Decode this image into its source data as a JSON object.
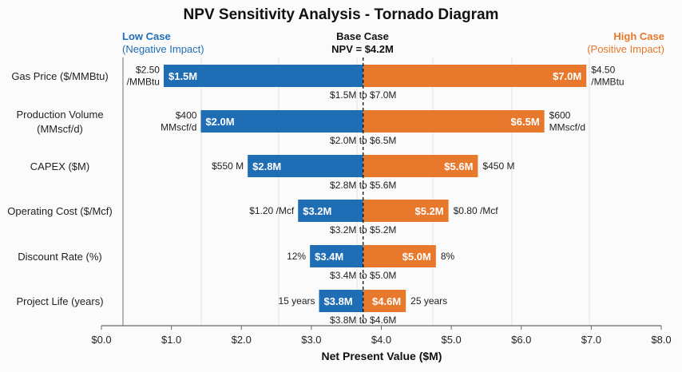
{
  "chart_data": {
    "type": "tornado",
    "title": "NPV Sensitivity Analysis - Tornado Diagram",
    "xlabel": "Net Present Value ($M)",
    "xlim": [
      0,
      8
    ],
    "x_ticks": [
      "$0.0",
      "$1.0",
      "$2.0",
      "$3.0",
      "$4.0",
      "$5.0",
      "$6.0",
      "$7.0",
      "$8.0"
    ],
    "grid": true,
    "header": {
      "low_title": "Low Case",
      "low_subtitle": "(Negative Impact)",
      "base_title": "Base Case",
      "base_subtitle": "NPV = $4.2M",
      "high_title": "High Case",
      "high_subtitle": "(Positive Impact)"
    },
    "base_value": 4.2,
    "base_line_on_axis": 3.74,
    "colors": {
      "low": "#1f6db5",
      "high": "#e8782c",
      "low_header": "#1f6db5",
      "high_header": "#e8782c"
    },
    "rows": [
      {
        "label": [
          "Gas Price ($/MMBtu)"
        ],
        "low_input": [
          "$2.50",
          "/MMBtu"
        ],
        "high_input": [
          "$4.50",
          "/MMBtu"
        ],
        "low_npv": 1.5,
        "high_npv": 7.0,
        "low_label": "$1.5M",
        "high_label": "$7.0M",
        "range_label": "$1.5M to $7.0M",
        "bar_start_on_axis": 0.89,
        "bar_end_on_axis": 6.93
      },
      {
        "label": [
          "Production Volume",
          "(MMscf/d)"
        ],
        "low_input": [
          "$400",
          "MMscf/d"
        ],
        "high_input": [
          "$600",
          "MMscf/d"
        ],
        "low_npv": 2.0,
        "high_npv": 6.5,
        "low_label": "$2.0M",
        "high_label": "$6.5M",
        "range_label": "$2.0M to $6.5M",
        "bar_start_on_axis": 1.42,
        "bar_end_on_axis": 6.33
      },
      {
        "label": [
          "CAPEX ($M)"
        ],
        "low_input": [
          "$550 M"
        ],
        "high_input": [
          "$450 M"
        ],
        "low_npv": 2.8,
        "high_npv": 5.6,
        "low_label": "$2.8M",
        "high_label": "$5.6M",
        "range_label": "$2.8M to $5.6M",
        "bar_start_on_axis": 2.09,
        "bar_end_on_axis": 5.38
      },
      {
        "label": [
          "Operating Cost ($/Mcf)"
        ],
        "low_input": [
          "$1.20 /Mcf"
        ],
        "high_input": [
          "$0.80 /Mcf"
        ],
        "low_npv": 3.2,
        "high_npv": 5.2,
        "low_label": "$3.2M",
        "high_label": "$5.2M",
        "range_label": "$3.2M to $5.2M",
        "bar_start_on_axis": 2.81,
        "bar_end_on_axis": 4.96
      },
      {
        "label": [
          "Discount Rate (%)"
        ],
        "low_input": [
          "12%"
        ],
        "high_input": [
          "8%"
        ],
        "low_npv": 3.4,
        "high_npv": 5.0,
        "low_label": "$3.4M",
        "high_label": "$5.0M",
        "range_label": "$3.4M to $5.0M",
        "bar_start_on_axis": 2.98,
        "bar_end_on_axis": 4.78
      },
      {
        "label": [
          "Project Life (years)"
        ],
        "low_input": [
          "15 years"
        ],
        "high_input": [
          "25 years"
        ],
        "low_npv": 3.8,
        "high_npv": 4.6,
        "low_label": "$3.8M",
        "high_label": "$4.6M",
        "range_label": "$3.8M to $4.6M",
        "bar_start_on_axis": 3.11,
        "bar_end_on_axis": 4.35
      }
    ]
  }
}
